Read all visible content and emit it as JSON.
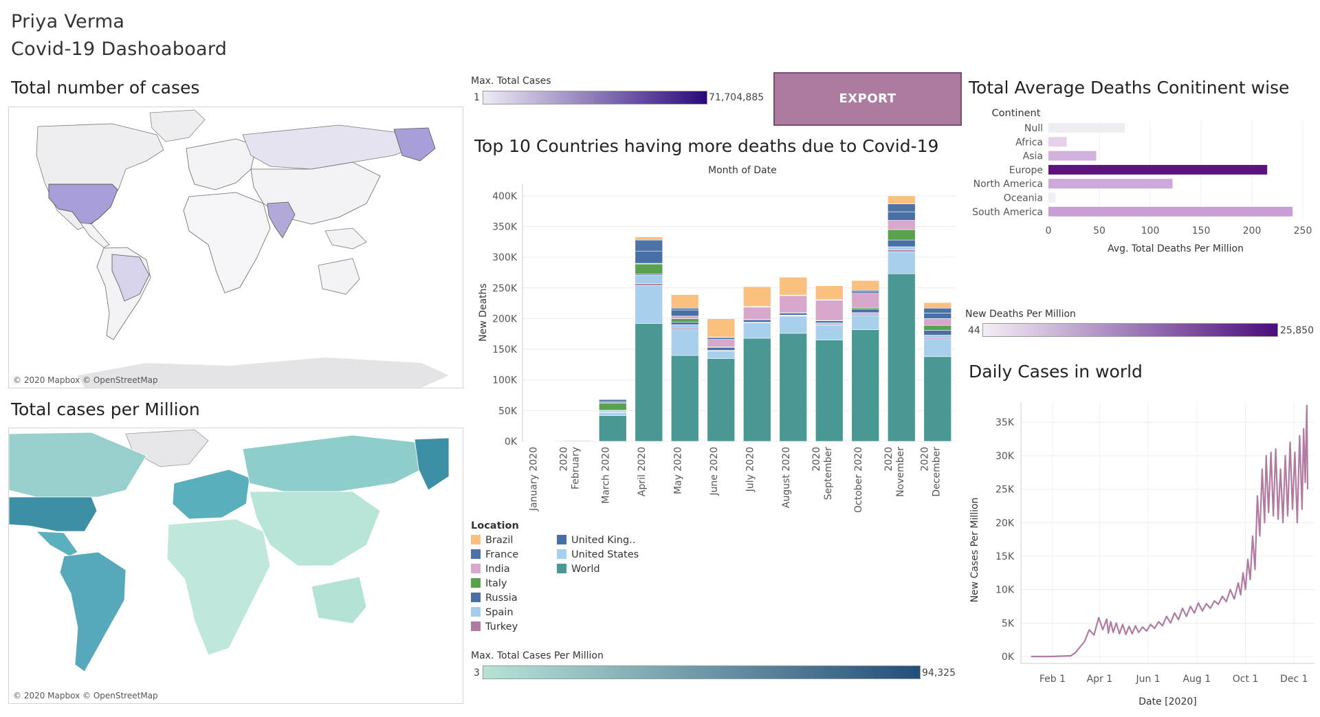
{
  "header": {
    "author": "Priya Verma",
    "title": "Covid-19  Dashoaboard"
  },
  "export_label": "EXPORT",
  "maps": {
    "cases": {
      "title": "Total number of cases",
      "credit": "© 2020 Mapbox © OpenStreetMap"
    },
    "per_million": {
      "title": "Total cases per Million",
      "credit": "© 2020 Mapbox © OpenStreetMap"
    }
  },
  "legends": {
    "max_total_cases": {
      "title": "Max. Total Cases",
      "min": "1",
      "max": "71,704,885",
      "from": "#eeeaf4",
      "to": "#2a0a7a"
    },
    "new_deaths_pm": {
      "title": "New Deaths Per Million",
      "min": "44",
      "max": "25,850",
      "from": "#f5eef6",
      "to": "#4b0c7c"
    },
    "max_cases_pm": {
      "title": "Max. Total Cases Per Million",
      "min": "3",
      "max": "94,325",
      "from": "#b6e3d6",
      "to": "#244f7a"
    }
  },
  "location_legend": {
    "title": "Location",
    "items": [
      {
        "name": "Brazil",
        "color": "#fbbf7f"
      },
      {
        "name": "France",
        "color": "#4c72a8"
      },
      {
        "name": "India",
        "color": "#d7a8cb"
      },
      {
        "name": "Italy",
        "color": "#59a14f"
      },
      {
        "name": "Russia",
        "color": "#4a6fa4"
      },
      {
        "name": "Spain",
        "color": "#a5cdea"
      },
      {
        "name": "Turkey",
        "color": "#b07aa1"
      },
      {
        "name": "United King..",
        "color": "#4870a7"
      },
      {
        "name": "United States",
        "color": "#a8cfec"
      },
      {
        "name": "World",
        "color": "#499894"
      }
    ]
  },
  "chart_data": [
    {
      "type": "bar",
      "title": "Top 10 Countries having more deaths due to Covid-19",
      "subtitle": "Month of Date",
      "ylabel": "New Deaths",
      "ylim": [
        0,
        420000
      ],
      "yticks": [
        {
          "v": 0,
          "label": "0K"
        },
        {
          "v": 50000,
          "label": "50K"
        },
        {
          "v": 100000,
          "label": "100K"
        },
        {
          "v": 150000,
          "label": "150K"
        },
        {
          "v": 200000,
          "label": "200K"
        },
        {
          "v": 250000,
          "label": "250K"
        },
        {
          "v": 300000,
          "label": "300K"
        },
        {
          "v": 350000,
          "label": "350K"
        },
        {
          "v": 400000,
          "label": "400K"
        }
      ],
      "categories": [
        "January 2020",
        "February 2020",
        "March 2020",
        "April 2020",
        "May 2020",
        "June 2020",
        "July 2020",
        "August 2020",
        "September 2020",
        "October 2020",
        "November 2020",
        "December 2020"
      ],
      "category_lines": [
        [
          "January 2020"
        ],
        [
          "February",
          "2020"
        ],
        [
          "March 2020"
        ],
        [
          "April 2020"
        ],
        [
          "May 2020"
        ],
        [
          "June 2020"
        ],
        [
          "July 2020"
        ],
        [
          "August 2020"
        ],
        [
          "September",
          "2020"
        ],
        [
          "October 2020"
        ],
        [
          "November",
          "2020"
        ],
        [
          "December",
          "2020"
        ]
      ],
      "series": [
        {
          "name": "World",
          "color": "#499894",
          "values": [
            200,
            1000,
            42000,
            192000,
            140000,
            135000,
            168000,
            176000,
            165000,
            182000,
            273000,
            138000
          ]
        },
        {
          "name": "United States",
          "color": "#a8cfec",
          "values": [
            0,
            0,
            5000,
            62000,
            42000,
            12000,
            25000,
            28000,
            24000,
            23000,
            36000,
            28000
          ]
        },
        {
          "name": "Turkey",
          "color": "#b07aa1",
          "values": [
            0,
            0,
            300,
            3000,
            2000,
            700,
            600,
            700,
            1500,
            2000,
            3000,
            2000
          ]
        },
        {
          "name": "Spain",
          "color": "#a5cdea",
          "values": [
            0,
            0,
            3000,
            14000,
            6000,
            500,
            500,
            1000,
            2500,
            2700,
            5000,
            5000
          ]
        },
        {
          "name": "Russia",
          "color": "#4a6fa4",
          "values": [
            0,
            0,
            300,
            2000,
            4000,
            4500,
            4000,
            3500,
            3500,
            6000,
            11000,
            8000
          ]
        },
        {
          "name": "Italy",
          "color": "#59a14f",
          "values": [
            0,
            0,
            12000,
            16000,
            6000,
            1500,
            500,
            350,
            400,
            2400,
            17000,
            8000
          ]
        },
        {
          "name": "India",
          "color": "#d7a8cb",
          "values": [
            0,
            0,
            300,
            1000,
            4000,
            12000,
            20000,
            28000,
            33000,
            23000,
            15000,
            11000
          ]
        },
        {
          "name": "United King..",
          "color": "#4870a7",
          "values": [
            0,
            0,
            2000,
            20000,
            10000,
            3000,
            1000,
            300,
            500,
            2300,
            14000,
            9000
          ]
        },
        {
          "name": "France",
          "color": "#4c72a8",
          "values": [
            0,
            0,
            3500,
            18000,
            3000,
            600,
            400,
            500,
            1000,
            2600,
            13000,
            8000
          ]
        },
        {
          "name": "Brazil",
          "color": "#fbbf7f",
          "values": [
            0,
            0,
            200,
            5000,
            22000,
            30000,
            32000,
            29000,
            22000,
            16000,
            13000,
            9000
          ]
        }
      ]
    },
    {
      "type": "bar",
      "title": "Total Average Deaths Conitinent wise",
      "ylabel": "Continent",
      "xlabel": "Avg. Total Deaths Per Million",
      "xlim": [
        0,
        250
      ],
      "xticks": [
        0,
        50,
        100,
        150,
        200,
        250
      ],
      "categories": [
        "Null",
        "Africa",
        "Asia",
        "Europe",
        "North America",
        "Oceania",
        "South America"
      ],
      "values": [
        75,
        18,
        47,
        215,
        122,
        7,
        240
      ],
      "colors": [
        "#efedf1",
        "#e5d2e8",
        "#d2b1dc",
        "#5c137e",
        "#cda9da",
        "#f1eef3",
        "#c79fd6"
      ]
    },
    {
      "type": "line",
      "title": "Daily Cases in world",
      "xlabel": "Date [2020]",
      "ylabel": "New Cases Per Million",
      "color": "#b07aa1",
      "ylim": [
        0,
        38000
      ],
      "yticks": [
        {
          "v": 0,
          "label": "0K"
        },
        {
          "v": 5000,
          "label": "5K"
        },
        {
          "v": 10000,
          "label": "10K"
        },
        {
          "v": 15000,
          "label": "15K"
        },
        {
          "v": 20000,
          "label": "20K"
        },
        {
          "v": 25000,
          "label": "25K"
        },
        {
          "v": 30000,
          "label": "30K"
        },
        {
          "v": 35000,
          "label": "35K"
        }
      ],
      "xticks": [
        {
          "day": 32,
          "label": "Feb 1"
        },
        {
          "day": 91,
          "label": "Apr 1"
        },
        {
          "day": 152,
          "label": "Jun 1"
        },
        {
          "day": 213,
          "label": "Aug 1"
        },
        {
          "day": 274,
          "label": "Oct 1"
        },
        {
          "day": 335,
          "label": "Dec 1"
        }
      ],
      "x_range_days": [
        1,
        352
      ],
      "x": [
        5,
        30,
        55,
        60,
        65,
        72,
        78,
        84,
        90,
        95,
        100,
        102,
        105,
        108,
        112,
        116,
        120,
        124,
        128,
        132,
        136,
        140,
        145,
        150,
        155,
        160,
        165,
        170,
        175,
        180,
        185,
        190,
        195,
        200,
        205,
        210,
        215,
        220,
        225,
        230,
        235,
        240,
        245,
        250,
        255,
        260,
        265,
        268,
        271,
        274,
        277,
        280,
        283,
        286,
        289,
        292,
        295,
        298,
        300,
        303,
        306,
        309,
        312,
        315,
        318,
        321,
        324,
        327,
        330,
        333,
        336,
        339,
        342,
        345,
        347,
        349,
        351,
        352
      ],
      "y": [
        0,
        0,
        100,
        500,
        1200,
        2200,
        4000,
        3200,
        5800,
        4000,
        5600,
        3500,
        5200,
        3600,
        5000,
        3400,
        4800,
        3300,
        4500,
        3400,
        4600,
        3600,
        4400,
        3800,
        4800,
        4200,
        5200,
        4600,
        6000,
        5000,
        6500,
        5500,
        7200,
        6000,
        7500,
        6500,
        8000,
        6800,
        7900,
        7200,
        8300,
        7800,
        9000,
        8200,
        10000,
        8600,
        11000,
        9200,
        12500,
        10000,
        14500,
        11500,
        18000,
        13000,
        24000,
        18000,
        28000,
        20000,
        30000,
        21500,
        30500,
        21000,
        31000,
        20500,
        28000,
        20000,
        30000,
        21000,
        32000,
        22000,
        30500,
        20000,
        33000,
        22000,
        34000,
        26000,
        37500,
        25000
      ]
    }
  ]
}
